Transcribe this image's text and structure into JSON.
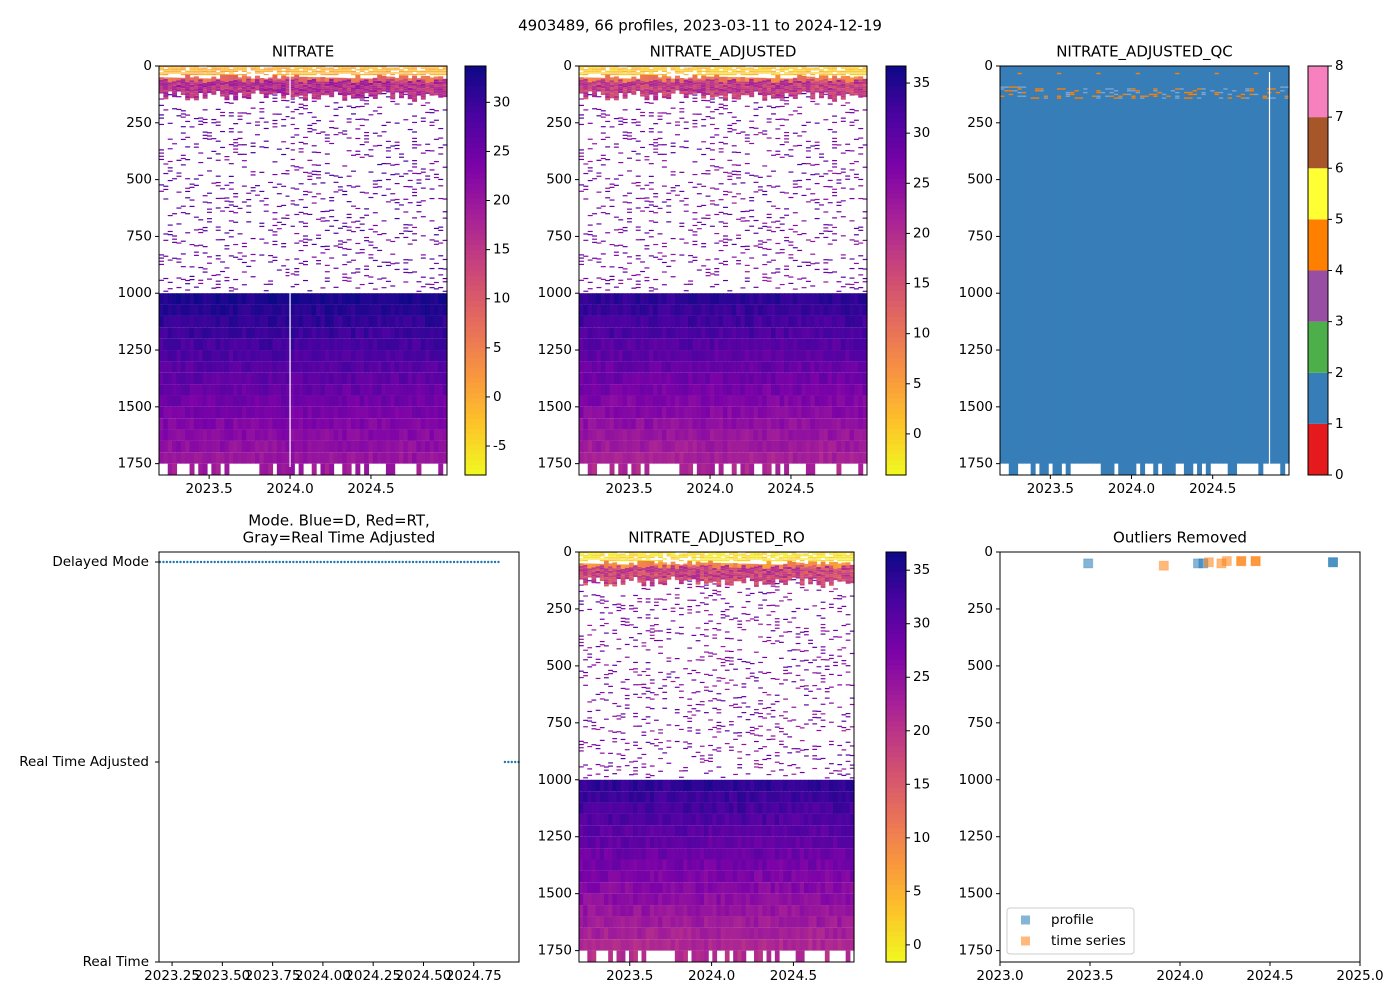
{
  "figure": {
    "suptitle": "4903489, 66 profiles, 2023-03-11 to 2024-12-19"
  },
  "colors": {
    "mode_dots": "#1f77b4",
    "profile": "#1f77b4",
    "time_series": "#ff7f0e",
    "qc_background": "#377eb8"
  },
  "chart_data": [
    {
      "type": "heatmap",
      "title": "NITRATE",
      "profiles": 66,
      "xlim": [
        2023.19,
        2024.97
      ],
      "ylim": [
        1800,
        0
      ],
      "xticks": [
        "2023.5",
        "2024.0",
        "2024.5"
      ],
      "xtick_values": [
        2023.5,
        2024.0,
        2024.5
      ],
      "yticks": [
        "0",
        "250",
        "500",
        "750",
        "1000",
        "1250",
        "1500",
        "1750"
      ],
      "ytick_values": [
        0,
        250,
        500,
        750,
        1000,
        1250,
        1500,
        1750
      ],
      "colormap": "plasma_r",
      "value_offset": -1.5,
      "colorbar": {
        "lim": [
          -7.95,
          33.7
        ],
        "ticks": [
          "-5",
          "0",
          "5",
          "10",
          "15",
          "20",
          "25",
          "30"
        ],
        "tick_values": [
          -5,
          0,
          5,
          10,
          15,
          20,
          25,
          30
        ]
      },
      "missing_profile_at": 2024.0
    },
    {
      "type": "heatmap",
      "title": "NITRATE_ADJUSTED",
      "profiles": 66,
      "xlim": [
        2023.19,
        2024.97
      ],
      "ylim": [
        1800,
        0
      ],
      "xticks": [
        "2023.5",
        "2024.0",
        "2024.5"
      ],
      "xtick_values": [
        2023.5,
        2024.0,
        2024.5
      ],
      "yticks": [
        "0",
        "250",
        "500",
        "750",
        "1000",
        "1250",
        "1500",
        "1750"
      ],
      "ytick_values": [
        0,
        250,
        500,
        750,
        1000,
        1250,
        1500,
        1750
      ],
      "colormap": "plasma_r",
      "value_offset": 0,
      "colorbar": {
        "lim": [
          -4.1,
          36.7
        ],
        "ticks": [
          "0",
          "5",
          "10",
          "15",
          "20",
          "25",
          "30",
          "35"
        ],
        "tick_values": [
          0,
          5,
          10,
          15,
          20,
          25,
          30,
          35
        ]
      }
    },
    {
      "type": "heatmap",
      "title": "NITRATE_ADJUSTED_QC",
      "profiles": 66,
      "xlim": [
        2023.19,
        2024.97
      ],
      "ylim": [
        1800,
        0
      ],
      "xticks": [
        "2023.5",
        "2024.0",
        "2024.5"
      ],
      "xtick_values": [
        2023.5,
        2024.0,
        2024.5
      ],
      "yticks": [
        "0",
        "250",
        "500",
        "750",
        "1000",
        "1250",
        "1500",
        "1750"
      ],
      "ytick_values": [
        0,
        250,
        500,
        750,
        1000,
        1250,
        1500,
        1750
      ],
      "colormap": "qc_discrete",
      "qc_colors": [
        "#e41a1c",
        "#377eb8",
        "#4daf4a",
        "#984ea3",
        "#ff7f00",
        "#ffff33",
        "#a65628",
        "#f781bf",
        "#999999"
      ],
      "colorbar": {
        "lim": [
          0,
          8
        ],
        "ticks": [
          "0",
          "1",
          "2",
          "3",
          "4",
          "5",
          "6",
          "7",
          "8"
        ],
        "tick_values": [
          0,
          1,
          2,
          3,
          4,
          5,
          6,
          7,
          8
        ]
      },
      "dominant_flag": 1,
      "minor_flag": 4,
      "minor_flag_depth_range": [
        90,
        140
      ],
      "missing_profile_at": 2024.85
    },
    {
      "type": "scatter",
      "title_line1": "Mode. Blue=D, Red=RT,",
      "title_line2": "Gray=Real Time Adjusted",
      "xlim": [
        2023.185,
        2024.975
      ],
      "xticks": [
        "2023.25",
        "2023.50",
        "2023.75",
        "2024.00",
        "2024.25",
        "2024.50",
        "2024.75"
      ],
      "xtick_values": [
        2023.25,
        2023.5,
        2023.75,
        2024.0,
        2024.25,
        2024.5,
        2024.75
      ],
      "ycategories": [
        "Real Time",
        "Real Time Adjusted",
        "Delayed Mode"
      ],
      "series": [
        {
          "name": "Delayed Mode",
          "x_start": 2023.19,
          "x_end": 2024.88,
          "y": "Delayed Mode"
        },
        {
          "name": "Real Time Adjusted",
          "x_start": 2024.905,
          "x_end": 2024.975,
          "y": "Real Time Adjusted"
        }
      ]
    },
    {
      "type": "heatmap",
      "title": "NITRATE_ADJUSTED_RO",
      "profiles": 66,
      "xlim": [
        2023.19,
        2024.87
      ],
      "ylim": [
        1800,
        0
      ],
      "xticks": [
        "2023.5",
        "2024.0",
        "2024.5"
      ],
      "xtick_values": [
        2023.5,
        2024.0,
        2024.5
      ],
      "yticks": [
        "0",
        "250",
        "500",
        "750",
        "1000",
        "1250",
        "1500",
        "1750"
      ],
      "ytick_values": [
        0,
        250,
        500,
        750,
        1000,
        1250,
        1500,
        1750
      ],
      "colormap": "plasma_r",
      "value_offset": 0,
      "colorbar": {
        "lim": [
          -1.6,
          36.7
        ],
        "ticks": [
          "0",
          "5",
          "10",
          "15",
          "20",
          "25",
          "30",
          "35"
        ],
        "tick_values": [
          0,
          5,
          10,
          15,
          20,
          25,
          30,
          35
        ]
      }
    },
    {
      "type": "scatter",
      "title": "Outliers Removed",
      "xlim": [
        2023.0,
        2025.0
      ],
      "ylim": [
        1800,
        0
      ],
      "xticks": [
        "2023.0",
        "2023.5",
        "2024.0",
        "2024.5",
        "2025.0"
      ],
      "xtick_values": [
        2023.0,
        2023.5,
        2024.0,
        2024.5,
        2025.0
      ],
      "yticks": [
        "0",
        "250",
        "500",
        "750",
        "1000",
        "1250",
        "1500",
        "1750"
      ],
      "ytick_values": [
        0,
        250,
        500,
        750,
        1000,
        1250,
        1500,
        1750
      ],
      "legend": {
        "position": "lower-left",
        "entries": [
          "profile",
          "time series"
        ]
      },
      "series": [
        {
          "name": "profile",
          "points": [
            [
              2023.49,
              50
            ],
            [
              2024.1,
              50
            ],
            [
              2024.13,
              50
            ],
            [
              2024.85,
              45
            ],
            [
              2024.85,
              45
            ]
          ]
        },
        {
          "name": "time series",
          "points": [
            [
              2023.91,
              60
            ],
            [
              2024.16,
              45
            ],
            [
              2024.23,
              50
            ],
            [
              2024.26,
              40
            ],
            [
              2024.34,
              40
            ],
            [
              2024.34,
              40
            ],
            [
              2024.42,
              40
            ],
            [
              2024.42,
              40
            ]
          ]
        }
      ]
    }
  ]
}
